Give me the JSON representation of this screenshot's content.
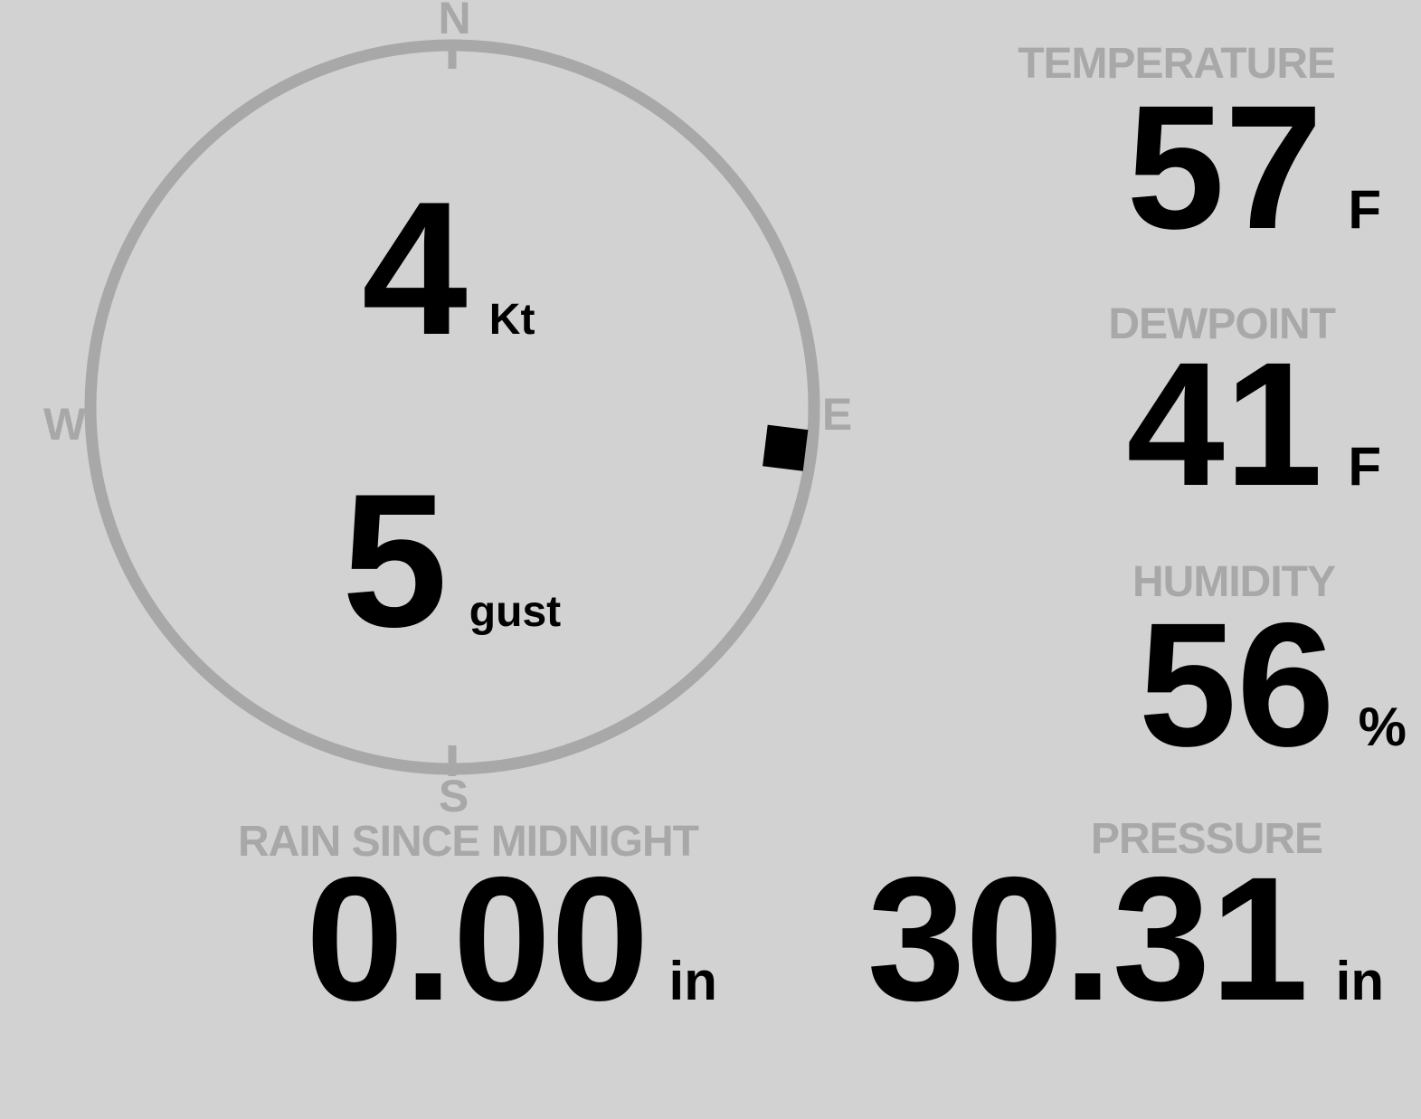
{
  "display": {
    "background_color": "#d2d2d2",
    "muted_color": "#a8a8a8",
    "value_color": "#000000"
  },
  "wind": {
    "compass": {
      "north_label": "N",
      "east_label": "E",
      "south_label": "S",
      "west_label": "W",
      "direction_deg": 97
    },
    "speed": {
      "value": "4",
      "unit": "Kt"
    },
    "gust": {
      "value": "5",
      "unit": "gust"
    }
  },
  "metrics": {
    "temperature": {
      "label": "TEMPERATURE",
      "value": "57",
      "unit": "F"
    },
    "dewpoint": {
      "label": "DEWPOINT",
      "value": "41",
      "unit": "F"
    },
    "humidity": {
      "label": "HUMIDITY",
      "value": "56",
      "unit": "%"
    },
    "rain_since_midnight": {
      "label": "RAIN SINCE MIDNIGHT",
      "value": "0.00",
      "unit": "in"
    },
    "pressure": {
      "label": "PRESSURE",
      "value": "30.31",
      "unit": "in"
    }
  }
}
